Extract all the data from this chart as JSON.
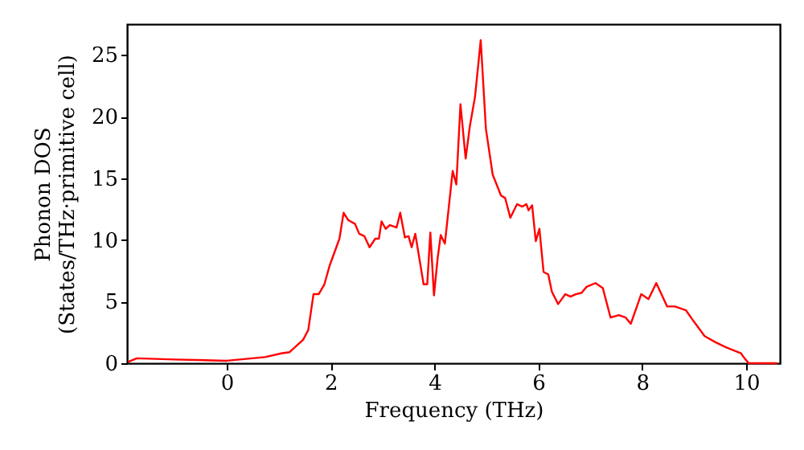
{
  "chart_data": {
    "type": "line",
    "xlabel": "Frequency (THz)",
    "ylabel": "Phonon DOS\n(States/THz·primitive cell)",
    "xlim": [
      -1.92,
      10.65
    ],
    "ylim": [
      0,
      27.5
    ],
    "xticks": [
      0,
      2,
      4,
      6,
      8,
      10
    ],
    "yticks": [
      0,
      5,
      10,
      15,
      20,
      25
    ],
    "grid": false,
    "marker": "none",
    "line_style": "solid",
    "series": [
      {
        "color": "#ff0000",
        "x": [
          -1.9,
          -1.73,
          -1.01,
          0.0,
          0.74,
          1.05,
          1.21,
          1.47,
          1.57,
          1.67,
          1.77,
          1.88,
          1.98,
          2.17,
          2.25,
          2.34,
          2.47,
          2.55,
          2.65,
          2.75,
          2.86,
          2.93,
          2.98,
          3.06,
          3.14,
          3.27,
          3.34,
          3.43,
          3.5,
          3.56,
          3.63,
          3.79,
          3.86,
          3.92,
          3.99,
          4.06,
          4.12,
          4.2,
          4.35,
          4.42,
          4.5,
          4.6,
          4.68,
          4.78,
          4.89,
          4.99,
          5.12,
          5.28,
          5.36,
          5.46,
          5.59,
          5.69,
          5.77,
          5.81,
          5.88,
          5.95,
          6.02,
          6.1,
          6.19,
          6.26,
          6.38,
          6.52,
          6.62,
          6.72,
          6.83,
          6.93,
          7.1,
          7.24,
          7.39,
          7.55,
          7.68,
          7.78,
          7.98,
          8.12,
          8.27,
          8.48,
          8.63,
          8.84,
          8.99,
          9.2,
          9.41,
          9.61,
          9.9,
          9.97,
          10.05,
          10.6
        ],
        "values": [
          0.1,
          0.4,
          0.3,
          0.2,
          0.5,
          0.8,
          0.9,
          1.9,
          2.7,
          5.6,
          5.6,
          6.4,
          7.9,
          10.1,
          12.2,
          11.6,
          11.3,
          10.5,
          10.3,
          9.4,
          10.1,
          10.1,
          11.5,
          10.9,
          11.2,
          11.0,
          12.2,
          10.2,
          10.3,
          9.4,
          10.5,
          6.4,
          6.4,
          10.6,
          5.5,
          8.5,
          10.4,
          9.7,
          15.6,
          14.5,
          21.0,
          16.6,
          19.2,
          21.6,
          26.2,
          19.0,
          15.3,
          13.6,
          13.4,
          11.8,
          12.9,
          12.7,
          12.9,
          12.4,
          12.8,
          9.9,
          10.9,
          7.4,
          7.2,
          5.8,
          4.8,
          5.6,
          5.4,
          5.6,
          5.7,
          6.2,
          6.5,
          6.1,
          3.7,
          3.9,
          3.7,
          3.2,
          5.6,
          5.2,
          6.5,
          4.6,
          4.6,
          4.3,
          3.4,
          2.2,
          1.7,
          1.3,
          0.8,
          0.4,
          0,
          0
        ]
      }
    ]
  }
}
